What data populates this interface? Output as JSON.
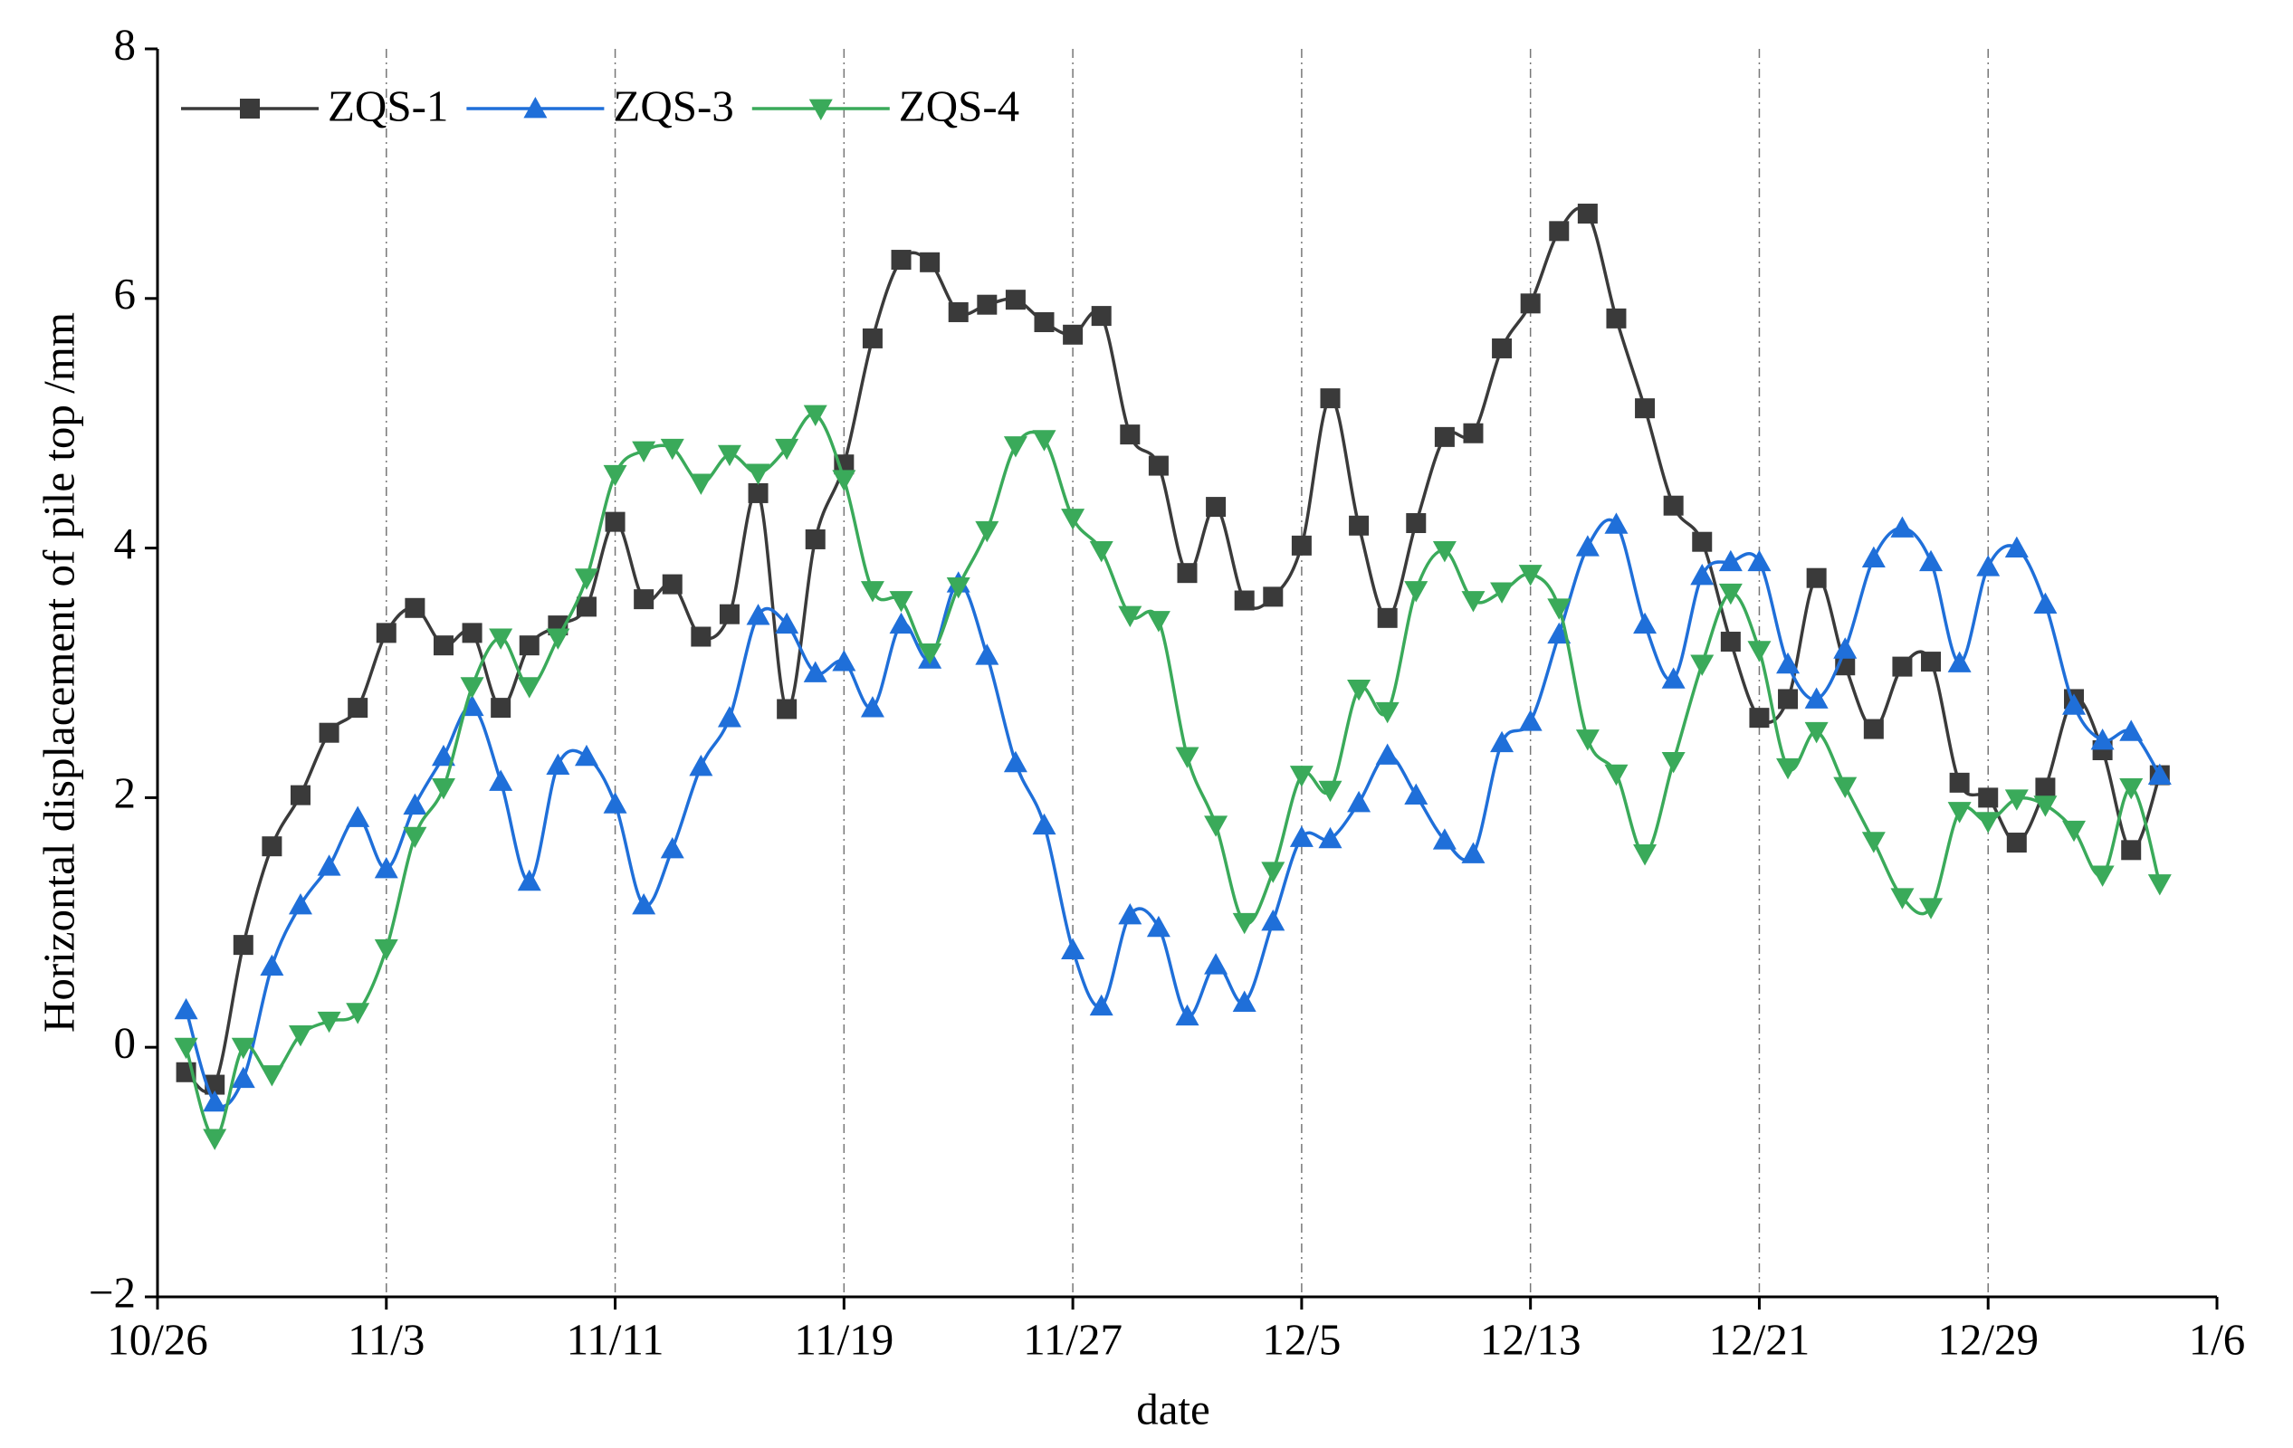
{
  "chart_data": {
    "type": "line",
    "xlabel": "date",
    "ylabel": "Horizontal displacement of pile top /mm",
    "x": [
      "10/27",
      "10/28",
      "10/29",
      "10/30",
      "10/31",
      "11/1",
      "11/2",
      "11/3",
      "11/4",
      "11/5",
      "11/6",
      "11/7",
      "11/8",
      "11/9",
      "11/10",
      "11/11",
      "11/12",
      "11/13",
      "11/14",
      "11/15",
      "11/16",
      "11/17",
      "11/18",
      "11/19",
      "11/20",
      "11/21",
      "11/22",
      "11/23",
      "11/24",
      "11/25",
      "11/26",
      "11/27",
      "11/28",
      "11/29",
      "11/30",
      "12/1",
      "12/2",
      "12/3",
      "12/4",
      "12/5",
      "12/6",
      "12/7",
      "12/8",
      "12/9",
      "12/10",
      "12/11",
      "12/12",
      "12/13",
      "12/14",
      "12/15",
      "12/16",
      "12/17",
      "12/18",
      "12/19",
      "12/20",
      "12/21",
      "12/22",
      "12/23",
      "12/24",
      "12/25",
      "12/26",
      "12/27",
      "12/28",
      "12/29",
      "12/30",
      "12/31",
      "1/1",
      "1/2",
      "1/3",
      "1/4"
    ],
    "series": [
      {
        "name": "ZQS-1",
        "color": "#3a3a3a",
        "marker": "square",
        "values": [
          -0.2,
          -0.3,
          0.82,
          1.61,
          2.02,
          2.52,
          2.72,
          3.32,
          3.52,
          3.22,
          3.32,
          2.72,
          3.22,
          3.38,
          3.53,
          4.21,
          3.59,
          3.71,
          3.29,
          3.47,
          4.44,
          2.71,
          4.07,
          4.67,
          5.68,
          6.31,
          6.29,
          5.89,
          5.95,
          5.99,
          5.81,
          5.71,
          5.86,
          4.91,
          4.66,
          3.8,
          4.33,
          3.58,
          3.61,
          4.02,
          5.2,
          4.18,
          3.44,
          4.2,
          4.89,
          4.92,
          5.6,
          5.96,
          6.54,
          6.68,
          5.84,
          5.12,
          4.34,
          4.05,
          3.25,
          2.64,
          2.79,
          3.76,
          3.06,
          2.55,
          3.05,
          3.09,
          2.12,
          2.0,
          1.64,
          2.08,
          2.79,
          2.38,
          1.58,
          2.18
        ]
      },
      {
        "name": "ZQS-3",
        "color": "#1f6fd9",
        "marker": "triangle-up",
        "values": [
          0.3,
          -0.44,
          -0.25,
          0.65,
          1.14,
          1.45,
          1.84,
          1.43,
          1.94,
          2.33,
          2.73,
          2.13,
          1.33,
          2.26,
          2.33,
          1.95,
          1.14,
          1.59,
          2.25,
          2.64,
          3.46,
          3.39,
          3.0,
          3.09,
          2.72,
          3.39,
          3.11,
          3.72,
          3.14,
          2.28,
          1.78,
          0.78,
          0.33,
          1.06,
          0.96,
          0.25,
          0.66,
          0.36,
          1.01,
          1.68,
          1.67,
          1.96,
          2.34,
          2.02,
          1.66,
          1.55,
          2.44,
          2.61,
          3.31,
          4.01,
          4.19,
          3.39,
          2.95,
          3.78,
          3.89,
          3.89,
          3.07,
          2.79,
          3.19,
          3.92,
          4.16,
          3.89,
          3.08,
          3.85,
          4.0,
          3.55,
          2.74,
          2.46,
          2.53,
          2.18
        ]
      },
      {
        "name": "ZQS-4",
        "color": "#3aaa5a",
        "marker": "triangle-down",
        "values": [
          0.0,
          -0.73,
          0.0,
          -0.22,
          0.1,
          0.21,
          0.28,
          0.79,
          1.69,
          2.08,
          2.89,
          3.28,
          2.89,
          3.28,
          3.76,
          4.59,
          4.78,
          4.8,
          4.52,
          4.75,
          4.6,
          4.8,
          5.07,
          4.55,
          3.66,
          3.58,
          3.16,
          3.69,
          4.14,
          4.82,
          4.87,
          4.24,
          3.98,
          3.46,
          3.42,
          2.33,
          1.78,
          1.0,
          1.41,
          2.18,
          2.06,
          2.87,
          2.69,
          3.66,
          3.98,
          3.58,
          3.65,
          3.79,
          3.52,
          2.47,
          2.19,
          1.55,
          2.29,
          3.07,
          3.64,
          3.18,
          2.24,
          2.53,
          2.09,
          1.65,
          1.2,
          1.12,
          1.89,
          1.81,
          1.99,
          1.94,
          1.74,
          1.38,
          2.08,
          1.31
        ]
      }
    ],
    "xlim": [
      "10/26",
      "1/6"
    ],
    "xticks": [
      "10/26",
      "11/3",
      "11/11",
      "11/19",
      "11/27",
      "12/5",
      "12/13",
      "12/21",
      "12/29",
      "1/6"
    ],
    "ylim": [
      -2,
      8
    ],
    "yticks": [
      {
        "value": -2,
        "label": "−2"
      },
      0,
      2,
      4,
      6,
      8
    ],
    "grid": "x",
    "legend": "upper left"
  }
}
